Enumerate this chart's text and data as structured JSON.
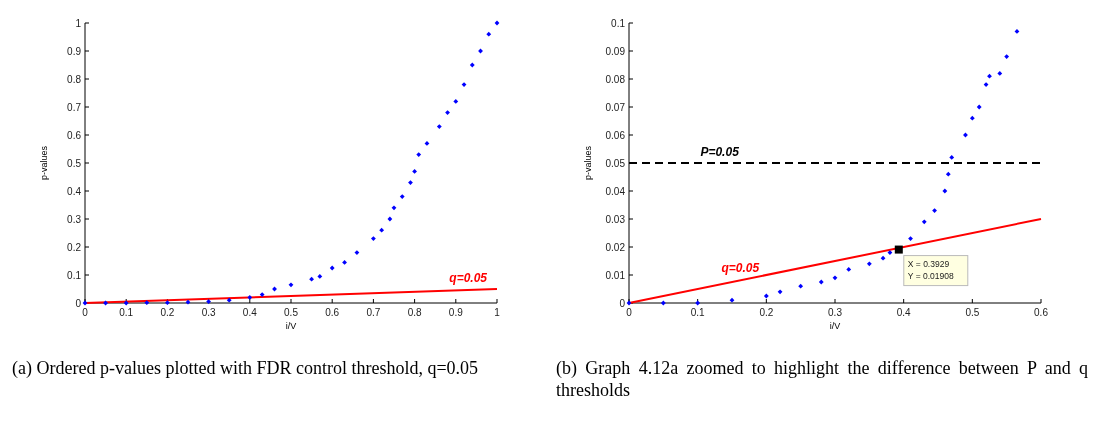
{
  "chart_data": [
    {
      "type": "scatter",
      "xlabel": "i/V",
      "ylabel": "p-values",
      "xlim": [
        0,
        1
      ],
      "ylim": [
        0,
        1
      ],
      "xticks": [
        0,
        0.1,
        0.2,
        0.3,
        0.4,
        0.5,
        0.6,
        0.7,
        0.8,
        0.9,
        1
      ],
      "yticks": [
        0,
        0.1,
        0.2,
        0.3,
        0.4,
        0.5,
        0.6,
        0.7,
        0.8,
        0.9,
        1
      ],
      "marker": "diamond",
      "series": [
        {
          "color": "#0000ff",
          "x": [
            0,
            0.05,
            0.1,
            0.15,
            0.2,
            0.25,
            0.3,
            0.35,
            0.4,
            0.43,
            0.46,
            0.5,
            0.55,
            0.57,
            0.6,
            0.63,
            0.66,
            0.7,
            0.72,
            0.74,
            0.75,
            0.77,
            0.79,
            0.8,
            0.81,
            0.83,
            0.86,
            0.88,
            0.9,
            0.92,
            0.94,
            0.96,
            0.98,
            1
          ],
          "values": [
            0,
            0,
            0,
            0.001,
            0.001,
            0.003,
            0.005,
            0.01,
            0.02,
            0.03,
            0.05,
            0.065,
            0.085,
            0.095,
            0.125,
            0.145,
            0.18,
            0.23,
            0.26,
            0.3,
            0.34,
            0.38,
            0.43,
            0.47,
            0.53,
            0.57,
            0.63,
            0.68,
            0.72,
            0.78,
            0.85,
            0.9,
            0.96,
            1
          ]
        },
        {
          "type": "line",
          "name": "q=0.05",
          "color": "#ff0000",
          "marker": "none",
          "line_style": "solid",
          "x": [
            0,
            1
          ],
          "values": [
            0,
            0.05
          ]
        }
      ],
      "annotations": [
        "(a) Ordered p-values plotted with FDR control threshold, q=0.05"
      ]
    },
    {
      "type": "scatter",
      "xlabel": "i/V",
      "ylabel": "p-values",
      "xlim": [
        0,
        0.6
      ],
      "ylim": [
        0,
        0.1
      ],
      "xticks": [
        0,
        0.1,
        0.2,
        0.3,
        0.4,
        0.5,
        0.6
      ],
      "yticks": [
        0,
        0.01,
        0.02,
        0.03,
        0.04,
        0.05,
        0.06,
        0.07,
        0.08,
        0.09,
        0.1
      ],
      "marker": "diamond",
      "series": [
        {
          "color": "#0000ff",
          "x": [
            0,
            0.05,
            0.1,
            0.15,
            0.2,
            0.22,
            0.25,
            0.28,
            0.3,
            0.32,
            0.35,
            0.37,
            0.38,
            0.41,
            0.43,
            0.445,
            0.46,
            0.465,
            0.47,
            0.49,
            0.5,
            0.51,
            0.52,
            0.525,
            0.54,
            0.55,
            0.565
          ],
          "values": [
            0,
            0,
            0,
            0.001,
            0.0025,
            0.004,
            0.006,
            0.0075,
            0.009,
            0.012,
            0.014,
            0.016,
            0.018,
            0.023,
            0.029,
            0.033,
            0.04,
            0.046,
            0.052,
            0.06,
            0.066,
            0.07,
            0.078,
            0.081,
            0.082,
            0.088,
            0.097
          ]
        },
        {
          "type": "line",
          "name": "q=0.05",
          "color": "#ff0000",
          "marker": "none",
          "line_style": "solid",
          "x": [
            0,
            0.6
          ],
          "values": [
            0,
            0.03
          ]
        }
      ],
      "ref_lines": [
        {
          "axis": "y",
          "value": 0.05,
          "label": "P=0.05",
          "color": "#000000",
          "line_style": "dashed"
        }
      ],
      "annotations": [
        {
          "text": "X = 0.3929\nY = 0.01908",
          "x": 0.3929,
          "y": 0.01908
        },
        "(b) Graph 4.12a zoomed to highlight the difference between P and q thresholds"
      ]
    }
  ]
}
